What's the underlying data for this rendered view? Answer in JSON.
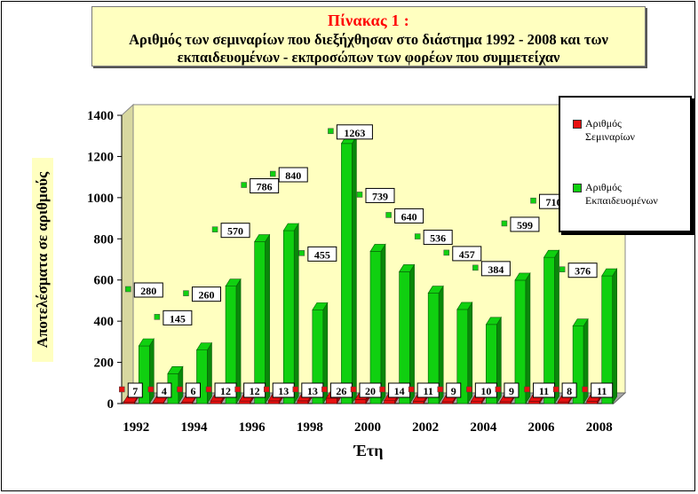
{
  "title": "Πίνακας 1 :",
  "subtitle": "Αριθμός των σεμιναρίων που διεξήχθησαν στο διάστημα 1992 - 2008 και των εκπαιδευομένων - εκπροσώπων των φορέων που συμμετείχαν",
  "chart_data": {
    "type": "bar",
    "xlabel": "Έτη",
    "ylabel": "Αποτελέσματα σε αριθμούς",
    "ylim": [
      0,
      1400
    ],
    "yticks": [
      "0",
      "200",
      "400",
      "600",
      "800",
      "1000",
      "1200",
      "1400"
    ],
    "categories": [
      "1992",
      "1993",
      "1994",
      "1995",
      "1996",
      "1997",
      "1998",
      "1999",
      "2000",
      "2001",
      "2002",
      "2003",
      "2004",
      "2005",
      "2006",
      "2007",
      "2008"
    ],
    "xtick_labels": [
      "1992",
      "1994",
      "1996",
      "1998",
      "2000",
      "2002",
      "2004",
      "2006",
      "2008"
    ],
    "series": [
      {
        "name": "Αριθμός Σεμιναρίων",
        "color": "#e81010",
        "values": [
          7,
          4,
          6,
          12,
          12,
          13,
          13,
          26,
          20,
          14,
          11,
          9,
          10,
          9,
          11,
          8,
          11
        ]
      },
      {
        "name": "Αριθμός Εκπαιδευομένων",
        "color": "#10d010",
        "values": [
          280,
          145,
          260,
          570,
          786,
          840,
          455,
          1263,
          739,
          640,
          536,
          457,
          384,
          599,
          710,
          376,
          620
        ]
      }
    ],
    "legend_position": "right",
    "wall_color": "#ffffc0",
    "data_labels": true
  },
  "legend": {
    "item1_line1": "Αριθμός",
    "item1_line2": "Σεμιναρίων",
    "item2_line1": "Αριθμός",
    "item2_line2": "Εκπαιδευομένων"
  }
}
